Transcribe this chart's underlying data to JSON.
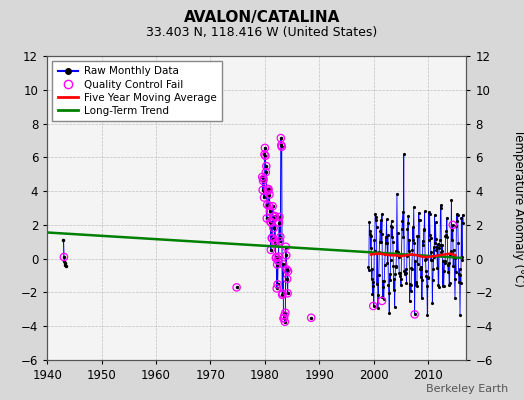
{
  "title": "AVALON/CATALINA",
  "subtitle": "33.403 N, 118.416 W (United States)",
  "ylabel_right": "Temperature Anomaly (°C)",
  "credit": "Berkeley Earth",
  "xlim": [
    1940,
    2017
  ],
  "ylim": [
    -6,
    12
  ],
  "yticks": [
    -6,
    -4,
    -2,
    0,
    2,
    4,
    6,
    8,
    10,
    12
  ],
  "xticks": [
    1940,
    1950,
    1960,
    1970,
    1980,
    1990,
    2000,
    2010
  ],
  "bg_color": "#d8d8d8",
  "plot_bg_color": "#f4f4f4",
  "long_term_trend_x": [
    1940,
    2016
  ],
  "long_term_trend_y": [
    1.55,
    0.05
  ],
  "five_year_avg_x": [
    1999.5,
    2001,
    2002,
    2003,
    2004,
    2005,
    2006,
    2007,
    2008,
    2009,
    2010,
    2011,
    2012,
    2013,
    2014,
    2015
  ],
  "five_year_avg_y": [
    0.25,
    0.3,
    0.25,
    0.2,
    0.2,
    0.15,
    0.2,
    0.25,
    0.2,
    0.1,
    0.1,
    0.15,
    0.2,
    0.25,
    0.3,
    0.2
  ]
}
